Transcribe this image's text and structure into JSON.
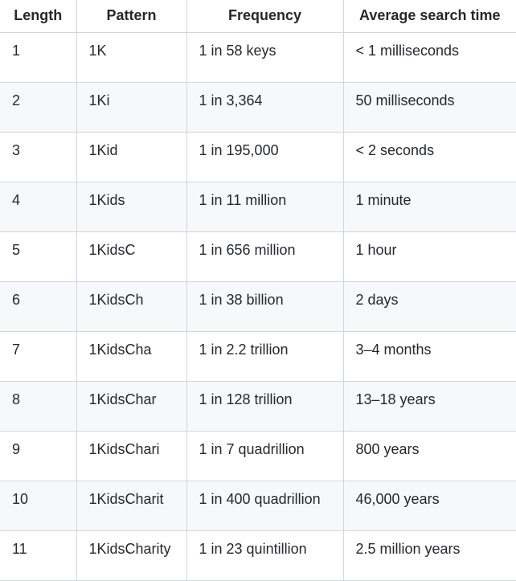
{
  "table": {
    "headers": [
      "Length",
      "Pattern",
      "Frequency",
      "Average search time"
    ],
    "rows": [
      [
        "1",
        "1K",
        "1 in 58 keys",
        "< 1 milliseconds"
      ],
      [
        "2",
        "1Ki",
        "1 in 3,364",
        "50 milliseconds"
      ],
      [
        "3",
        "1Kid",
        "1 in 195,000",
        "< 2 seconds"
      ],
      [
        "4",
        "1Kids",
        "1 in 11 million",
        "1 minute"
      ],
      [
        "5",
        "1KidsC",
        "1 in 656 million",
        "1 hour"
      ],
      [
        "6",
        "1KidsCh",
        "1 in 38 billion",
        "2 days"
      ],
      [
        "7",
        "1KidsCha",
        "1 in 2.2 trillion",
        "3–4 months"
      ],
      [
        "8",
        "1KidsChar",
        "1 in 128 trillion",
        "13–18 years"
      ],
      [
        "9",
        "1KidsChari",
        "1 in 7 quadrillion",
        "800 years"
      ],
      [
        "10",
        "1KidsCharit",
        "1 in 400 quadrillion",
        "46,000 years"
      ],
      [
        "11",
        "1KidsCharity",
        "1 in 23 quintillion",
        "2.5 million years"
      ]
    ]
  },
  "colors": {
    "border": "#d0d7de",
    "stripe": "#f6f8fa",
    "text": "#24292f"
  }
}
